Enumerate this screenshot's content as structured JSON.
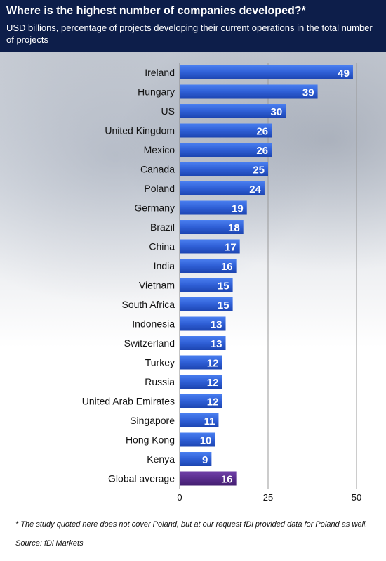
{
  "header": {
    "title": "Where is the highest number of companies developed?*",
    "subtitle": "USD billions, percentage of projects developing their current operations in the total number of projects"
  },
  "chart_data": {
    "type": "bar",
    "orientation": "horizontal",
    "categories": [
      "Ireland",
      "Hungary",
      "US",
      "United Kingdom",
      "Mexico",
      "Canada",
      "Poland",
      "Germany",
      "Brazil",
      "China",
      "India",
      "Vietnam",
      "South Africa",
      "Indonesia",
      "Switzerland",
      "Turkey",
      "Russia",
      "United Arab Emirates",
      "Singapore",
      "Hong Kong",
      "Kenya",
      "Global average"
    ],
    "values": [
      49,
      39,
      30,
      26,
      26,
      25,
      24,
      19,
      18,
      17,
      16,
      15,
      15,
      13,
      13,
      12,
      12,
      12,
      11,
      10,
      9,
      16
    ],
    "xticks": [
      0,
      25,
      50
    ],
    "xlim": [
      0,
      50
    ],
    "grid": true,
    "bar_color": "#2f5fd6",
    "highlight_color": "#5a2d8e",
    "highlight_category": "Global average"
  },
  "footer": {
    "footnote": "* The study quoted here does not cover Poland, but at our request fDi provided data for Poland as well.",
    "source": "Source: fDi Markets"
  }
}
